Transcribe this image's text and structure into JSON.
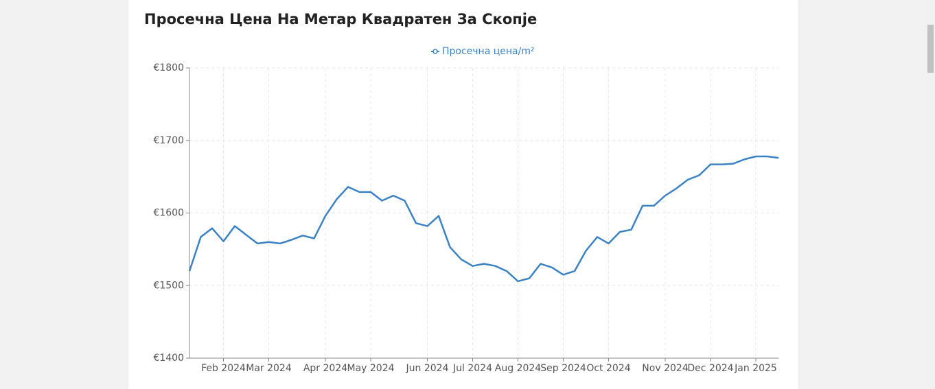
{
  "chart_data": {
    "type": "line",
    "title": "Просечна Цена На Метар Квадратен За Скопје",
    "categories": [
      null,
      null,
      null,
      "Feb 2024",
      null,
      null,
      null,
      "Mar 2024",
      null,
      null,
      null,
      null,
      "Apr 2024",
      null,
      null,
      null,
      "May 2024",
      null,
      null,
      null,
      null,
      "Jun 2024",
      null,
      null,
      null,
      "Jul 2024",
      null,
      null,
      null,
      "Aug 2024",
      null,
      null,
      null,
      "Sep 2024",
      null,
      null,
      null,
      "Oct 2024",
      null,
      null,
      null,
      null,
      "Nov 2024",
      null,
      null,
      null,
      "Dec 2024",
      null,
      null,
      null,
      "Jan 2025",
      null,
      null
    ],
    "series": [
      {
        "name": "Просечна цена/m²",
        "color": "#3b82c4",
        "values": [
          1520,
          1567,
          1579,
          1561,
          1582,
          1570,
          1558,
          1560,
          1558,
          1563,
          1569,
          1565,
          1596,
          1619,
          1636,
          1629,
          1629,
          1617,
          1624,
          1617,
          1586,
          1582,
          1596,
          1553,
          1536,
          1527,
          1530,
          1527,
          1520,
          1506,
          1510,
          1530,
          1525,
          1515,
          1520,
          1548,
          1567,
          1558,
          1574,
          1577,
          1610,
          1610,
          1624,
          1634,
          1646,
          1652,
          1667,
          1667,
          1668,
          1674,
          1678,
          1678,
          1676
        ]
      }
    ],
    "ylim": [
      1400,
      1800
    ],
    "yticks": [
      {
        "value": 1400,
        "label": "€1400"
      },
      {
        "value": 1500,
        "label": "€1500"
      },
      {
        "value": 1600,
        "label": "€1600"
      },
      {
        "value": 1700,
        "label": "€1700"
      },
      {
        "value": 1800,
        "label": "€1800"
      }
    ],
    "grid": true,
    "legend": "top"
  }
}
